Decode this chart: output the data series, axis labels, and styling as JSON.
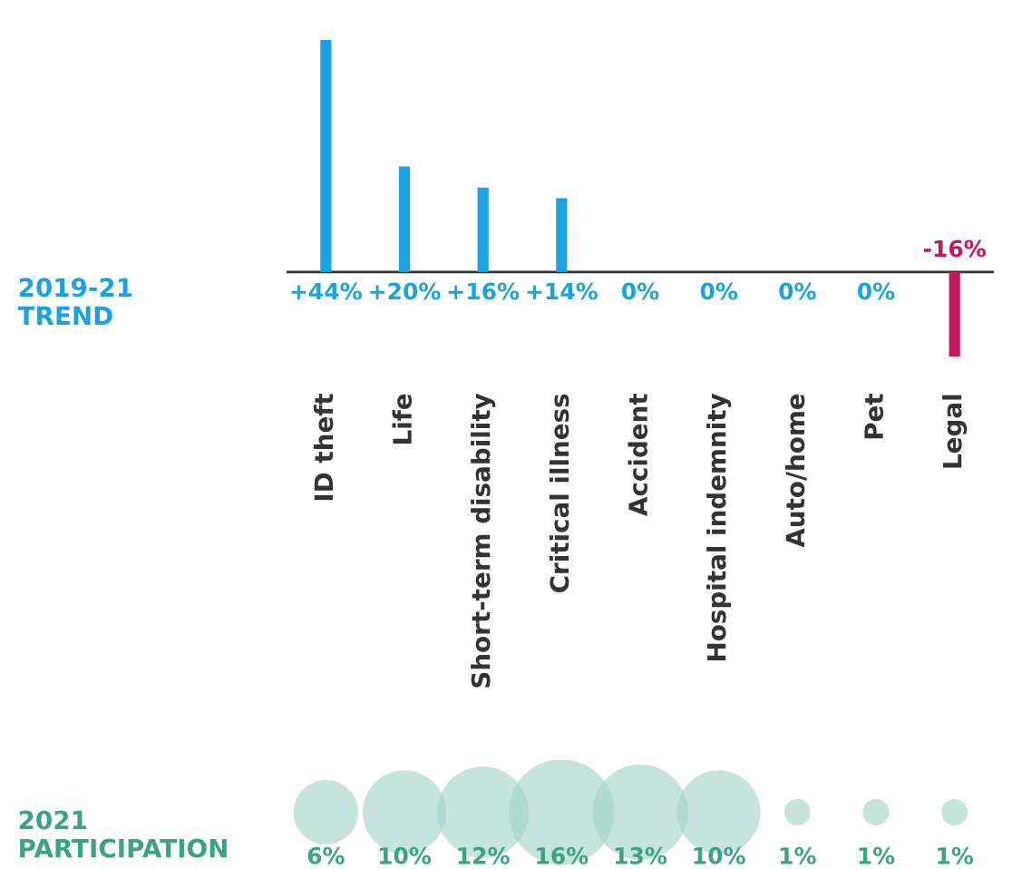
{
  "chart_data": [
    {
      "type": "bar",
      "ylabel": "2019-21\nTREND",
      "categories": [
        "ID theft",
        "Life",
        "Short-term disability",
        "Critical illness",
        "Accident",
        "Hospital indemnity",
        "Auto/home",
        "Pet",
        "Legal"
      ],
      "values": [
        44,
        20,
        16,
        14,
        0,
        0,
        0,
        0,
        -16
      ],
      "colors": [
        "#1aa3e0",
        "#1aa3e0",
        "#1aa3e0",
        "#1aa3e0",
        "#1aa3e0",
        "#1aa3e0",
        "#1aa3e0",
        "#1aa3e0",
        "#c2185b"
      ],
      "value_labels": [
        "+44%",
        "+20%",
        "+16%",
        "+14%",
        "0%",
        "0%",
        "0%",
        "0%",
        "-16%"
      ],
      "tick_labels": "x",
      "grid": false
    },
    {
      "type": "other",
      "ylabel": "2021\nPARTICIPATION",
      "categories": [
        null,
        null,
        null,
        null,
        null,
        null,
        null,
        null,
        null
      ],
      "values": [
        6,
        10,
        12,
        16,
        13,
        10,
        1,
        1,
        1
      ],
      "color": "#9fd3c4",
      "value_labels": [
        "6%",
        "10%",
        "12%",
        "16%",
        "13%",
        "10%",
        "1%",
        "1%",
        "1%"
      ]
    }
  ]
}
